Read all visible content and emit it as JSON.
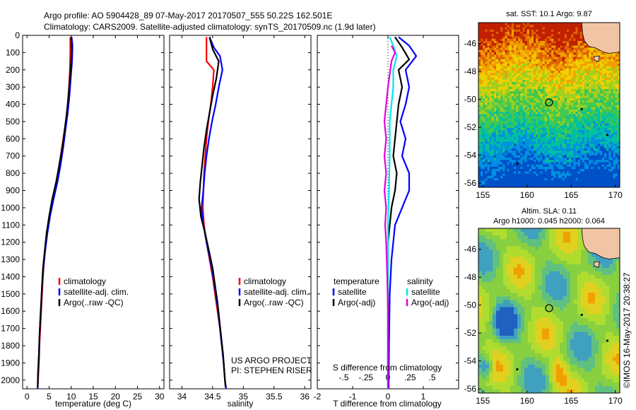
{
  "header": {
    "line1": "Argo profile: AO 5904428_89 07-May-2017 20170507_555 50.22S 162.501E",
    "line2": "Climatology: CARS2009. Satellite-adjusted climatology: synTS_20170509.nc (1.9d later)"
  },
  "colors": {
    "climatology": "#ff0000",
    "satellite": "#0000ff",
    "argo": "#000000",
    "sal_satellite": "#00e5ee",
    "sal_argo": "#e000e0"
  },
  "chart_data": [
    {
      "type": "line",
      "id": "temperature-profile",
      "xlabel": "temperature (deg C)",
      "xlim": [
        -1,
        31
      ],
      "xticks": [
        0,
        5,
        10,
        15,
        20,
        25,
        30
      ],
      "ylim": [
        2050,
        0
      ],
      "yticks": [
        0,
        100,
        200,
        300,
        400,
        500,
        600,
        700,
        800,
        900,
        1000,
        1100,
        1200,
        1300,
        1400,
        1500,
        1600,
        1700,
        1800,
        1900,
        2000
      ],
      "legend": [
        "climatology",
        "satellite-adj. clim.",
        "Argo(..raw -QC)"
      ],
      "series": [
        {
          "name": "climatology",
          "color": "#ff0000",
          "points": [
            [
              9.8,
              10
            ],
            [
              9.8,
              100
            ],
            [
              9.7,
              200
            ],
            [
              9.5,
              300
            ],
            [
              9.2,
              400
            ],
            [
              8.8,
              500
            ],
            [
              8.2,
              600
            ],
            [
              7.6,
              700
            ],
            [
              7.0,
              800
            ],
            [
              6.2,
              900
            ],
            [
              5.4,
              1000
            ],
            [
              4.8,
              1100
            ],
            [
              4.3,
              1200
            ],
            [
              3.9,
              1300
            ],
            [
              3.6,
              1400
            ],
            [
              3.4,
              1500
            ],
            [
              3.2,
              1600
            ],
            [
              3.0,
              1700
            ],
            [
              2.8,
              1800
            ],
            [
              2.7,
              1900
            ],
            [
              2.5,
              2000
            ],
            [
              2.4,
              2050
            ]
          ]
        },
        {
          "name": "satellite-adj. clim.",
          "color": "#0000ff",
          "points": [
            [
              10.1,
              10
            ],
            [
              10.3,
              60
            ],
            [
              10.2,
              150
            ],
            [
              9.9,
              250
            ],
            [
              9.6,
              350
            ],
            [
              9.2,
              450
            ],
            [
              8.7,
              550
            ],
            [
              8.2,
              650
            ],
            [
              7.6,
              750
            ],
            [
              6.9,
              850
            ],
            [
              6.0,
              950
            ],
            [
              5.2,
              1050
            ],
            [
              4.6,
              1150
            ],
            [
              4.1,
              1250
            ],
            [
              3.7,
              1350
            ],
            [
              3.4,
              1450
            ],
            [
              3.2,
              1550
            ],
            [
              3.0,
              1650
            ],
            [
              2.8,
              1750
            ],
            [
              2.7,
              1850
            ],
            [
              2.5,
              1950
            ],
            [
              2.4,
              2050
            ]
          ]
        },
        {
          "name": "Argo(..raw -QC)",
          "color": "#000000",
          "points": [
            [
              10.0,
              10
            ],
            [
              10.1,
              80
            ],
            [
              10.0,
              150
            ],
            [
              9.7,
              250
            ],
            [
              9.4,
              350
            ],
            [
              9.0,
              450
            ],
            [
              8.5,
              550
            ],
            [
              8.0,
              650
            ],
            [
              7.3,
              750
            ],
            [
              6.6,
              850
            ],
            [
              5.7,
              950
            ],
            [
              5.0,
              1050
            ],
            [
              4.4,
              1150
            ],
            [
              4.0,
              1250
            ],
            [
              3.6,
              1350
            ],
            [
              3.4,
              1450
            ],
            [
              3.2,
              1550
            ],
            [
              3.0,
              1650
            ],
            [
              2.8,
              1750
            ],
            [
              2.7,
              1850
            ],
            [
              2.5,
              1950
            ],
            [
              2.4,
              2040
            ]
          ]
        }
      ]
    },
    {
      "type": "line",
      "id": "salinity-profile",
      "xlabel": "salinity",
      "xlim": [
        33.8,
        36.1
      ],
      "xticks": [
        34,
        34.5,
        35,
        35.5,
        36
      ],
      "ylim": [
        2050,
        0
      ],
      "legend": [
        "climatology",
        "satellite-adj. clim.",
        "Argo(..raw -QC)"
      ],
      "annotation": [
        "US ARGO PROJECT",
        "PI: STEPHEN RISER"
      ],
      "series": [
        {
          "name": "climatology",
          "color": "#ff0000",
          "points": [
            [
              34.4,
              10
            ],
            [
              34.4,
              150
            ],
            [
              34.52,
              200
            ],
            [
              34.5,
              300
            ],
            [
              34.47,
              400
            ],
            [
              34.43,
              500
            ],
            [
              34.4,
              600
            ],
            [
              34.38,
              700
            ],
            [
              34.36,
              800
            ],
            [
              34.35,
              900
            ],
            [
              34.34,
              1000
            ],
            [
              34.36,
              1100
            ],
            [
              34.4,
              1200
            ],
            [
              34.45,
              1300
            ],
            [
              34.5,
              1400
            ],
            [
              34.54,
              1500
            ],
            [
              34.58,
              1600
            ],
            [
              34.62,
              1700
            ],
            [
              34.65,
              1800
            ],
            [
              34.68,
              1900
            ],
            [
              34.7,
              2000
            ],
            [
              34.72,
              2050
            ]
          ]
        },
        {
          "name": "satellite-adj. clim.",
          "color": "#0000ff",
          "points": [
            [
              34.45,
              10
            ],
            [
              34.52,
              70
            ],
            [
              34.62,
              120
            ],
            [
              34.66,
              200
            ],
            [
              34.6,
              300
            ],
            [
              34.55,
              400
            ],
            [
              34.49,
              500
            ],
            [
              34.44,
              600
            ],
            [
              34.4,
              700
            ],
            [
              34.37,
              800
            ],
            [
              34.35,
              900
            ],
            [
              34.32,
              1000
            ],
            [
              34.35,
              1100
            ],
            [
              34.4,
              1200
            ],
            [
              34.46,
              1300
            ],
            [
              34.51,
              1400
            ],
            [
              34.55,
              1500
            ],
            [
              34.59,
              1600
            ],
            [
              34.62,
              1700
            ],
            [
              34.65,
              1800
            ],
            [
              34.68,
              1900
            ],
            [
              34.7,
              2000
            ],
            [
              34.72,
              2050
            ]
          ]
        },
        {
          "name": "Argo(..raw -QC)",
          "color": "#000000",
          "points": [
            [
              34.45,
              10
            ],
            [
              34.5,
              80
            ],
            [
              34.6,
              150
            ],
            [
              34.56,
              250
            ],
            [
              34.5,
              350
            ],
            [
              34.45,
              450
            ],
            [
              34.4,
              550
            ],
            [
              34.36,
              650
            ],
            [
              34.33,
              750
            ],
            [
              34.3,
              850
            ],
            [
              34.28,
              950
            ],
            [
              34.31,
              1050
            ],
            [
              34.38,
              1150
            ],
            [
              34.44,
              1250
            ],
            [
              34.5,
              1350
            ],
            [
              34.54,
              1450
            ],
            [
              34.58,
              1550
            ],
            [
              34.61,
              1650
            ],
            [
              34.64,
              1750
            ],
            [
              34.67,
              1850
            ],
            [
              34.69,
              1950
            ],
            [
              34.71,
              2040
            ]
          ]
        }
      ]
    },
    {
      "type": "line",
      "id": "difference-profile",
      "xlabel_bottom": "T difference from climatology",
      "xlabel_top": "S difference from climatology",
      "xlim": [
        -2.0,
        2.0
      ],
      "xticks_bottom": [
        -2,
        -1,
        0,
        1
      ],
      "xticks_top": [
        -0.5,
        -0.25,
        0,
        0.25,
        0.5
      ],
      "ylim": [
        2050,
        0
      ],
      "legend_left": [
        "temperature",
        "satellite",
        "Argo(-adj)"
      ],
      "legend_right": [
        "salinity",
        "satellite",
        "Argo(-adj)"
      ],
      "series": [
        {
          "name": "temperature satellite",
          "color": "#0000ff",
          "points": [
            [
              0.3,
              10
            ],
            [
              0.6,
              60
            ],
            [
              0.8,
              120
            ],
            [
              0.5,
              200
            ],
            [
              0.6,
              300
            ],
            [
              0.5,
              400
            ],
            [
              0.35,
              500
            ],
            [
              0.5,
              600
            ],
            [
              0.4,
              700
            ],
            [
              0.6,
              800
            ],
            [
              0.6,
              900
            ],
            [
              0.4,
              1000
            ],
            [
              0.2,
              1100
            ],
            [
              0.1,
              1300
            ],
            [
              0.05,
              1500
            ],
            [
              0.03,
              1800
            ],
            [
              0.02,
              2050
            ]
          ]
        },
        {
          "name": "temperature Argo(-adj)",
          "color": "#000000",
          "points": [
            [
              0.2,
              10
            ],
            [
              0.4,
              70
            ],
            [
              0.6,
              140
            ],
            [
              0.3,
              200
            ],
            [
              0.4,
              300
            ],
            [
              0.3,
              400
            ],
            [
              0.25,
              500
            ],
            [
              0.2,
              600
            ],
            [
              0.15,
              700
            ],
            [
              0.25,
              800
            ],
            [
              0.2,
              900
            ],
            [
              0.1,
              1000
            ],
            [
              0.0,
              1200
            ],
            [
              0.0,
              2040
            ]
          ]
        },
        {
          "name": "salinity satellite",
          "color": "#00e5ee",
          "points": [
            [
              0.05,
              10
            ],
            [
              0.15,
              60
            ],
            [
              0.25,
              120
            ],
            [
              0.15,
              200
            ],
            [
              0.15,
              300
            ],
            [
              0.1,
              400
            ],
            [
              0.05,
              500
            ],
            [
              0.05,
              700
            ],
            [
              0.03,
              900
            ],
            [
              0.0,
              1100
            ],
            [
              0.0,
              2050
            ]
          ]
        },
        {
          "name": "salinity Argo(-adj)",
          "color": "#e000e0",
          "points": [
            [
              0.1,
              60
            ],
            [
              0.2,
              100
            ],
            [
              0.1,
              150
            ],
            [
              0.0,
              300
            ],
            [
              -0.05,
              400
            ],
            [
              -0.1,
              500
            ],
            [
              -0.05,
              600
            ],
            [
              -0.1,
              700
            ],
            [
              -0.05,
              800
            ],
            [
              -0.1,
              900
            ],
            [
              -0.05,
              1000
            ],
            [
              -0.08,
              1100
            ],
            [
              -0.05,
              1200
            ],
            [
              -0.02,
              1400
            ],
            [
              0.0,
              1600
            ],
            [
              0.0,
              2050
            ]
          ]
        }
      ]
    },
    {
      "type": "heatmap",
      "id": "sst-map",
      "title": "sat. SST: 10.1  Argo: 9.87",
      "xlim": [
        154.5,
        170.5
      ],
      "xticks": [
        155,
        160,
        165,
        170
      ],
      "ylim": [
        -56.3,
        -44.5
      ],
      "yticks": [
        -46,
        -48,
        -50,
        -52,
        -54,
        -56
      ],
      "marker": {
        "lon": 162.5,
        "lat": -50.22
      }
    },
    {
      "type": "heatmap",
      "id": "sla-map",
      "title": "Altim. SLA: 0.11",
      "subtitle": "Argo h1000: 0.045 h2000: 0.064",
      "xlim": [
        154.5,
        170.5
      ],
      "xticks": [
        155,
        160,
        165,
        170
      ],
      "ylim": [
        -56.3,
        -44.5
      ],
      "yticks": [
        -46,
        -48,
        -50,
        -52,
        -54,
        -56
      ],
      "marker": {
        "lon": 162.5,
        "lat": -50.22
      }
    }
  ],
  "watermark": "©IMOS 16-May-2017 20:38:27"
}
